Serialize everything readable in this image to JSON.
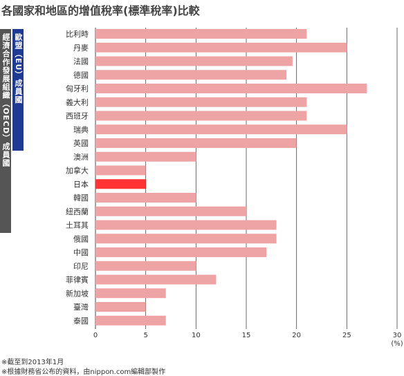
{
  "chart_data": {
    "type": "bar",
    "orientation": "horizontal",
    "title": "各國家和地區的增值稅率(標準稅率)比較",
    "xlabel": "",
    "ylabel": "",
    "x_unit": "(%)",
    "xlim": [
      0,
      30
    ],
    "xticks": [
      0,
      5,
      10,
      15,
      20,
      25,
      30
    ],
    "grid": true,
    "categories": [
      "比利時",
      "丹麥",
      "法國",
      "德國",
      "匈牙利",
      "義大利",
      "西班牙",
      "瑞典",
      "英國",
      "澳洲",
      "加拿大",
      "日本",
      "韓國",
      "紐西蘭",
      "土耳其",
      "俄國",
      "中國",
      "印尼",
      "菲律賓",
      "新加坡",
      "臺灣",
      "泰國"
    ],
    "values": [
      21,
      25,
      19.6,
      19,
      27,
      21,
      21,
      25,
      20,
      10,
      5,
      5,
      10,
      15,
      18,
      18,
      17,
      10,
      12,
      7,
      5,
      7
    ],
    "highlight": "日本",
    "colors": {
      "bar": "#eea4a4",
      "highlight": "#ff3333",
      "eu_band": "#1f3a93",
      "oecd_band": "#555555",
      "grid": "#444444"
    },
    "group_labels": {
      "oecd": "經濟合作發展組織（OECD）成員國",
      "eu": "歐盟（EU）成員國"
    }
  },
  "notes": [
    "※截至到2013年1月",
    "※根據財務省公布的資料，由nippon.com編輯部製作"
  ]
}
